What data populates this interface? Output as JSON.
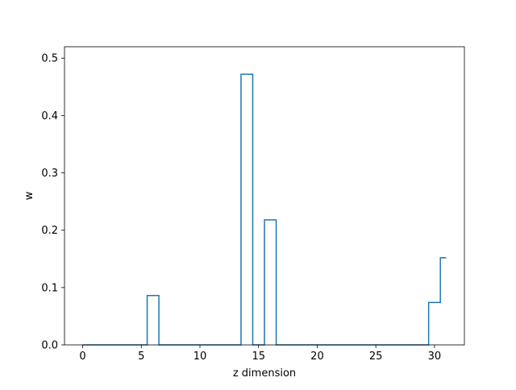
{
  "chart_data": {
    "type": "line",
    "drawstyle": "steps-mid",
    "title": "",
    "xlabel": "z dimension",
    "ylabel": "w",
    "xlim": [
      -1.55,
      32.55
    ],
    "ylim": [
      0,
      0.52
    ],
    "xticks": [
      0,
      5,
      10,
      15,
      20,
      25,
      30
    ],
    "yticks": [
      0.0,
      0.1,
      0.2,
      0.3,
      0.4,
      0.5
    ],
    "xtick_labels": [
      "0",
      "5",
      "10",
      "15",
      "20",
      "25",
      "30"
    ],
    "ytick_labels": [
      "0.0",
      "0.1",
      "0.2",
      "0.3",
      "0.4",
      "0.5"
    ],
    "grid": false,
    "series": [
      {
        "color": "#1f77b4",
        "x": [
          0,
          1,
          2,
          3,
          4,
          5,
          6,
          7,
          8,
          9,
          10,
          11,
          12,
          13,
          14,
          15,
          16,
          17,
          18,
          19,
          20,
          21,
          22,
          23,
          24,
          25,
          26,
          27,
          28,
          29,
          30,
          31
        ],
        "y": [
          0,
          0,
          0,
          0,
          0,
          0,
          0.086,
          0,
          0,
          0,
          0,
          0,
          0,
          0,
          0.472,
          0,
          0.218,
          0,
          0,
          0,
          0,
          0,
          0,
          0,
          0,
          0,
          0,
          0,
          0,
          0,
          0.074,
          0.152
        ]
      }
    ]
  }
}
